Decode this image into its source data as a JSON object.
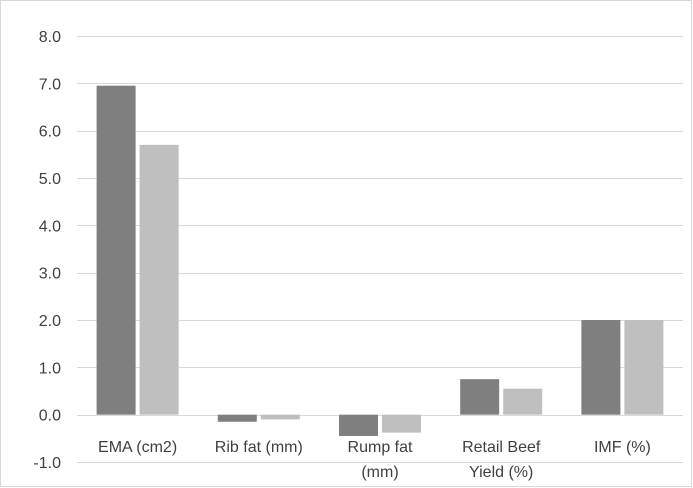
{
  "chart_data": {
    "type": "bar",
    "categories": [
      "EMA (cm2)",
      "Rib fat (mm)",
      "Rump fat (mm)",
      "Retail Beef Yield (%)",
      "IMF (%)"
    ],
    "category_lines": [
      [
        "EMA (cm2)"
      ],
      [
        "Rib fat (mm)"
      ],
      [
        "Rump fat",
        "(mm)"
      ],
      [
        "Retail Beef",
        "Yield (%)"
      ],
      [
        "IMF (%)"
      ]
    ],
    "series": [
      {
        "values": [
          6.95,
          -0.15,
          -0.45,
          0.75,
          2.0
        ],
        "color": "#7f7f7f"
      },
      {
        "values": [
          5.7,
          -0.1,
          -0.38,
          0.55,
          2.0
        ],
        "color": "#bfbfbf"
      }
    ],
    "ylim": [
      -1.0,
      8.0
    ],
    "yticks": [
      "8.0",
      "7.0",
      "6.0",
      "5.0",
      "4.0",
      "3.0",
      "2.0",
      "1.0",
      "0.0",
      "-1.0"
    ],
    "ytick_values": [
      8,
      7,
      6,
      5,
      4,
      3,
      2,
      1,
      0,
      -1
    ],
    "grid": true,
    "colors": {
      "grid": "#d9d9d9",
      "text": "#404040"
    }
  }
}
